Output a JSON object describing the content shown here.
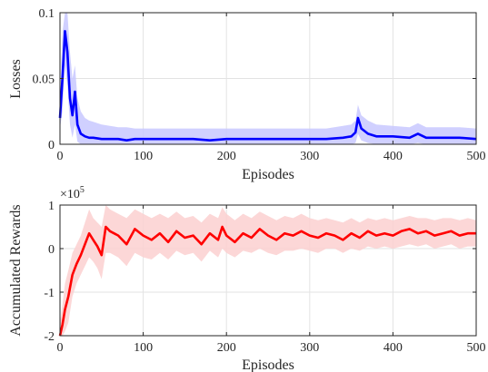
{
  "chart_data": [
    {
      "type": "line",
      "xlabel": "Episodes",
      "ylabel": "Losses",
      "xlim": [
        0,
        500
      ],
      "ylim": [
        0,
        0.1
      ],
      "xticks": [
        "0",
        "100",
        "200",
        "300",
        "400",
        "500"
      ],
      "yticks": [
        "0",
        "0.05",
        "0.1"
      ],
      "grid": true,
      "colors": {
        "line": "#0000ff",
        "band": "#c8c8ff"
      },
      "series": [
        {
          "x": [
            0,
            3,
            6,
            9,
            12,
            15,
            18,
            21,
            25,
            30,
            35,
            40,
            50,
            60,
            70,
            80,
            90,
            100,
            120,
            140,
            160,
            180,
            200,
            220,
            240,
            260,
            280,
            300,
            320,
            340,
            350,
            355,
            358,
            362,
            366,
            370,
            380,
            400,
            420,
            430,
            440,
            460,
            480,
            500
          ],
          "values": [
            0.02,
            0.05,
            0.086,
            0.07,
            0.035,
            0.022,
            0.04,
            0.015,
            0.008,
            0.006,
            0.005,
            0.005,
            0.004,
            0.004,
            0.004,
            0.003,
            0.004,
            0.004,
            0.004,
            0.004,
            0.004,
            0.003,
            0.004,
            0.004,
            0.004,
            0.004,
            0.004,
            0.004,
            0.004,
            0.005,
            0.006,
            0.009,
            0.02,
            0.012,
            0.01,
            0.008,
            0.006,
            0.006,
            0.005,
            0.008,
            0.005,
            0.005,
            0.005,
            0.004
          ],
          "band_upper": [
            0.03,
            0.085,
            0.1,
            0.1,
            0.07,
            0.05,
            0.06,
            0.035,
            0.025,
            0.02,
            0.018,
            0.017,
            0.015,
            0.014,
            0.013,
            0.013,
            0.012,
            0.012,
            0.012,
            0.012,
            0.012,
            0.012,
            0.012,
            0.012,
            0.012,
            0.012,
            0.012,
            0.012,
            0.012,
            0.014,
            0.015,
            0.018,
            0.03,
            0.022,
            0.02,
            0.018,
            0.015,
            0.014,
            0.013,
            0.016,
            0.013,
            0.013,
            0.013,
            0.012
          ],
          "band_lower": [
            0.012,
            0.025,
            0.06,
            0.045,
            0.015,
            0.005,
            0.015,
            0.002,
            0.0,
            0.0,
            0.0,
            0.0,
            0.0,
            0.0,
            0.0,
            0.0,
            0.0,
            0.0,
            0.0,
            0.0,
            0.0,
            0.0,
            0.0,
            0.0,
            0.0,
            0.0,
            0.0,
            0.0,
            0.0,
            0.0,
            0.0,
            0.001,
            0.008,
            0.003,
            0.002,
            0.001,
            0.0,
            0.0,
            0.0,
            0.001,
            0.0,
            0.0,
            0.0,
            0.0
          ]
        }
      ]
    },
    {
      "type": "line",
      "xlabel": "Episodes",
      "ylabel": "Accumulated Rewards",
      "scale_label": "×10",
      "scale_exponent": "5",
      "xlim": [
        0,
        500
      ],
      "ylim": [
        -2,
        1
      ],
      "xticks": [
        "0",
        "100",
        "200",
        "300",
        "400",
        "500"
      ],
      "yticks": [
        "-2",
        "-1",
        "0",
        "1"
      ],
      "grid": true,
      "colors": {
        "line": "#ff0000",
        "band": "#fbd0d0"
      },
      "series": [
        {
          "x": [
            0,
            3,
            6,
            10,
            15,
            20,
            25,
            30,
            35,
            40,
            45,
            50,
            55,
            60,
            70,
            80,
            90,
            100,
            110,
            120,
            130,
            140,
            150,
            160,
            170,
            180,
            190,
            195,
            200,
            210,
            220,
            230,
            240,
            250,
            260,
            270,
            280,
            290,
            300,
            310,
            320,
            330,
            340,
            350,
            360,
            370,
            380,
            390,
            400,
            410,
            420,
            430,
            440,
            450,
            460,
            470,
            480,
            490,
            500
          ],
          "values": [
            -2.0,
            -1.75,
            -1.4,
            -1.1,
            -0.6,
            -0.35,
            -0.15,
            0.1,
            0.35,
            0.2,
            0.05,
            -0.15,
            0.5,
            0.4,
            0.3,
            0.1,
            0.45,
            0.3,
            0.2,
            0.35,
            0.15,
            0.4,
            0.25,
            0.3,
            0.1,
            0.35,
            0.2,
            0.5,
            0.3,
            0.15,
            0.35,
            0.25,
            0.45,
            0.3,
            0.2,
            0.35,
            0.3,
            0.4,
            0.3,
            0.25,
            0.35,
            0.3,
            0.2,
            0.35,
            0.25,
            0.4,
            0.3,
            0.35,
            0.3,
            0.4,
            0.45,
            0.35,
            0.4,
            0.3,
            0.35,
            0.4,
            0.3,
            0.35,
            0.35
          ],
          "band_upper": [
            -1.7,
            -1.3,
            -0.8,
            -0.5,
            -0.1,
            0.1,
            0.3,
            0.6,
            0.9,
            0.7,
            0.6,
            0.5,
            1.0,
            0.9,
            0.8,
            0.7,
            0.9,
            0.8,
            0.7,
            0.8,
            0.7,
            0.85,
            0.7,
            0.75,
            0.6,
            0.8,
            0.7,
            0.95,
            0.8,
            0.65,
            0.8,
            0.7,
            0.85,
            0.75,
            0.65,
            0.75,
            0.7,
            0.8,
            0.7,
            0.65,
            0.7,
            0.65,
            0.6,
            0.7,
            0.6,
            0.7,
            0.65,
            0.7,
            0.65,
            0.7,
            0.75,
            0.7,
            0.7,
            0.65,
            0.7,
            0.7,
            0.65,
            0.7,
            0.65
          ],
          "band_lower": [
            -2.0,
            -2.0,
            -1.9,
            -1.7,
            -1.1,
            -0.8,
            -0.6,
            -0.4,
            -0.2,
            -0.3,
            -0.45,
            -0.7,
            -0.1,
            -0.1,
            -0.2,
            -0.4,
            -0.1,
            -0.2,
            -0.25,
            -0.1,
            -0.25,
            -0.05,
            -0.15,
            -0.1,
            -0.3,
            -0.05,
            -0.2,
            0.0,
            -0.1,
            -0.2,
            -0.05,
            -0.1,
            0.0,
            -0.1,
            -0.15,
            -0.05,
            -0.05,
            0.0,
            -0.05,
            -0.1,
            0.0,
            0.0,
            -0.1,
            0.0,
            -0.05,
            0.05,
            0.0,
            0.05,
            0.0,
            0.05,
            0.1,
            0.05,
            0.1,
            0.0,
            0.05,
            0.1,
            0.0,
            0.05,
            0.05
          ]
        }
      ]
    }
  ]
}
